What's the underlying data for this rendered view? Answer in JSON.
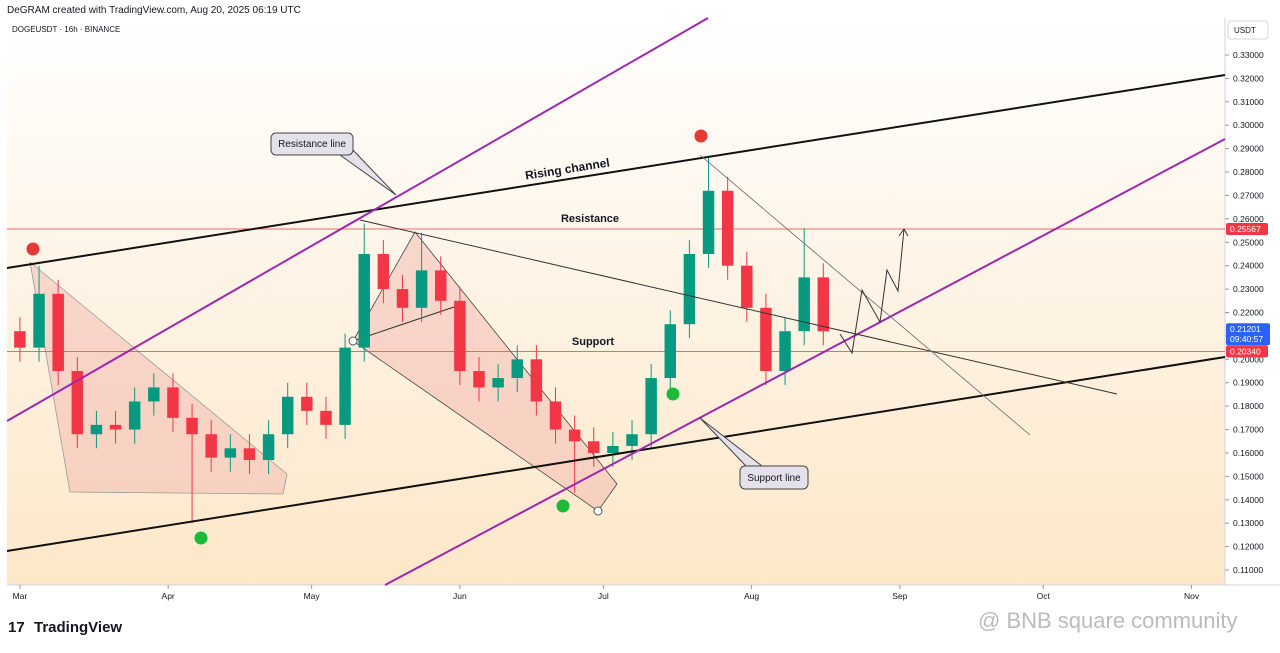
{
  "header": {
    "credit": "DeGRAM created with TradingView.com, Aug 20, 2025 06:19 UTC",
    "symbol": "DOGEUSDT · 16h · BINANCE",
    "currency": "USDT"
  },
  "chart_data": {
    "type": "candlestick",
    "xlim": [
      -2.7,
      252
    ],
    "xticks": [
      {
        "value": 0,
        "label": "Mar"
      },
      {
        "value": 31,
        "label": "Apr"
      },
      {
        "value": 61,
        "label": "May"
      },
      {
        "value": 92,
        "label": "Jun"
      },
      {
        "value": 122,
        "label": "Jul"
      },
      {
        "value": 153,
        "label": "Aug"
      },
      {
        "value": 184,
        "label": "Sep"
      },
      {
        "value": 214,
        "label": "Oct"
      },
      {
        "value": 245,
        "label": "Nov"
      }
    ],
    "ylim": [
      0.1036,
      0.3458
    ],
    "yticks": [
      {
        "value": 0.11,
        "label": "0.11000"
      },
      {
        "value": 0.12,
        "label": "0.12000"
      },
      {
        "value": 0.13,
        "label": "0.13000"
      },
      {
        "value": 0.14,
        "label": "0.14000"
      },
      {
        "value": 0.15,
        "label": "0.15000"
      },
      {
        "value": 0.16,
        "label": "0.16000"
      },
      {
        "value": 0.17,
        "label": "0.17000"
      },
      {
        "value": 0.18,
        "label": "0.18000"
      },
      {
        "value": 0.19,
        "label": "0.19000"
      },
      {
        "value": 0.2,
        "label": "0.20000"
      },
      {
        "value": 0.21,
        "label": "0.21000"
      },
      {
        "value": 0.22,
        "label": "0.22000"
      },
      {
        "value": 0.23,
        "label": "0.23000"
      },
      {
        "value": 0.24,
        "label": "0.24000"
      },
      {
        "value": 0.25,
        "label": "0.25000"
      },
      {
        "value": 0.26,
        "label": "0.26000"
      },
      {
        "value": 0.27,
        "label": "0.27000"
      },
      {
        "value": 0.28,
        "label": "0.28000"
      },
      {
        "value": 0.29,
        "label": "0.29000"
      },
      {
        "value": 0.3,
        "label": "0.30000"
      },
      {
        "value": 0.31,
        "label": "0.31000"
      },
      {
        "value": 0.32,
        "label": "0.32000"
      },
      {
        "value": 0.33,
        "label": "0.33000"
      }
    ],
    "up_color": "#089981",
    "down_color": "#f23645",
    "x": [
      0,
      4,
      8,
      12,
      16,
      20,
      24,
      28,
      32,
      36,
      40,
      44,
      48,
      52,
      56,
      60,
      64,
      68,
      72,
      76,
      80,
      84,
      88,
      92,
      96,
      100,
      104,
      108,
      112,
      116,
      120,
      124,
      128,
      132,
      136,
      140,
      144,
      148,
      152,
      156,
      160,
      164,
      168
    ],
    "open": [
      0.212,
      0.205,
      0.228,
      0.195,
      0.168,
      0.172,
      0.17,
      0.182,
      0.188,
      0.175,
      0.168,
      0.158,
      0.162,
      0.157,
      0.168,
      0.184,
      0.178,
      0.172,
      0.205,
      0.245,
      0.23,
      0.222,
      0.238,
      0.225,
      0.195,
      0.188,
      0.192,
      0.2,
      0.182,
      0.17,
      0.165,
      0.16,
      0.163,
      0.168,
      0.192,
      0.215,
      0.245,
      0.272,
      0.24,
      0.222,
      0.195,
      0.212,
      0.235
    ],
    "high": [
      0.218,
      0.24,
      0.234,
      0.201,
      0.178,
      0.178,
      0.188,
      0.194,
      0.194,
      0.181,
      0.174,
      0.168,
      0.168,
      0.174,
      0.19,
      0.19,
      0.184,
      0.211,
      0.258,
      0.251,
      0.236,
      0.254,
      0.244,
      0.231,
      0.201,
      0.198,
      0.206,
      0.206,
      0.188,
      0.176,
      0.171,
      0.169,
      0.174,
      0.198,
      0.221,
      0.251,
      0.286,
      0.278,
      0.246,
      0.228,
      0.218,
      0.256,
      0.241
    ],
    "low": [
      0.199,
      0.199,
      0.189,
      0.162,
      0.162,
      0.164,
      0.164,
      0.176,
      0.169,
      0.13,
      0.152,
      0.152,
      0.151,
      0.151,
      0.162,
      0.172,
      0.166,
      0.166,
      0.199,
      0.224,
      0.216,
      0.216,
      0.219,
      0.189,
      0.182,
      0.182,
      0.186,
      0.176,
      0.164,
      0.143,
      0.154,
      0.154,
      0.157,
      0.162,
      0.186,
      0.209,
      0.239,
      0.234,
      0.216,
      0.189,
      0.189,
      0.206,
      0.206
    ],
    "close": [
      0.205,
      0.228,
      0.195,
      0.168,
      0.172,
      0.17,
      0.182,
      0.188,
      0.175,
      0.168,
      0.158,
      0.162,
      0.157,
      0.168,
      0.184,
      0.178,
      0.172,
      0.205,
      0.245,
      0.23,
      0.222,
      0.238,
      0.225,
      0.195,
      0.188,
      0.192,
      0.2,
      0.182,
      0.17,
      0.165,
      0.16,
      0.163,
      0.168,
      0.192,
      0.215,
      0.245,
      0.272,
      0.24,
      0.222,
      0.195,
      0.212,
      0.235,
      0.212
    ],
    "levels": [
      {
        "value": 0.25567,
        "color": "#f23645"
      },
      {
        "value": 0.2034,
        "label": "0.20340",
        "color": "#f23645"
      }
    ],
    "last_price": {
      "value": 0.21201,
      "countdown": "09:40:57",
      "color": "#2962ff"
    },
    "annotations": [
      "Resistance line",
      "Rising channel",
      "Resistance",
      "Support",
      "Support line"
    ]
  },
  "footer": {
    "logo": "TradingView",
    "watermark": "@ BNB square community"
  }
}
